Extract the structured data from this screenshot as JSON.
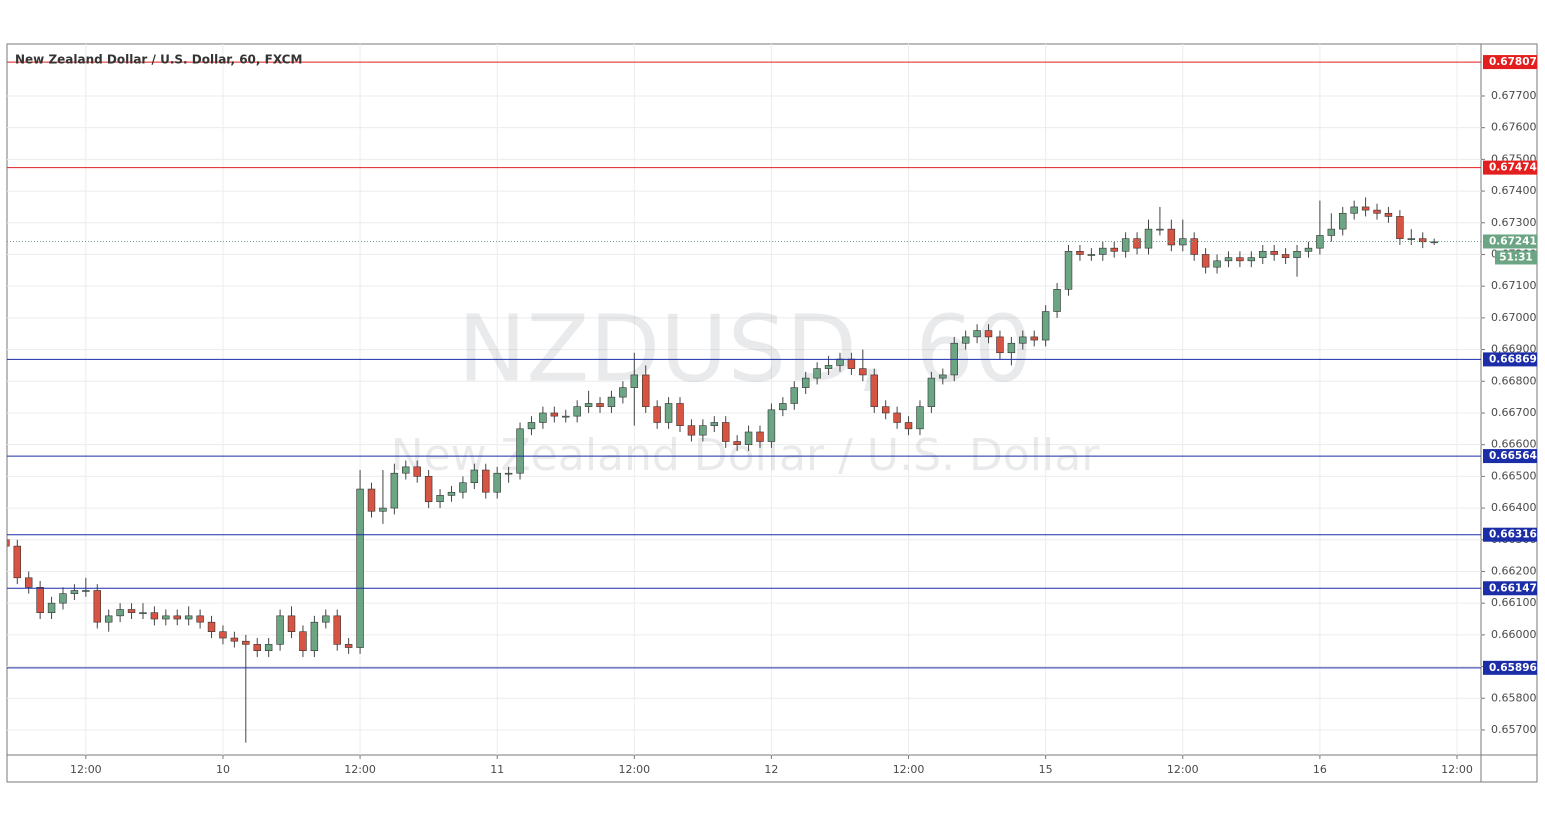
{
  "chart_data": {
    "type": "candlestick",
    "title": "New Zealand Dollar / U.S. Dollar, 60, FXCM",
    "watermark": "NZDUSD, 60",
    "watermark_subtitle": "New Zealand Dollar / U.S. Dollar",
    "up_color": "#6ba583",
    "down_color": "#d75442",
    "grid": true,
    "open": [
      0.663,
      0.6628,
      0.6618,
      0.6615,
      0.6607,
      0.661,
      0.6613,
      0.6614,
      0.6614,
      0.6604,
      0.6606,
      0.6608,
      0.6607,
      0.6607,
      0.6605,
      0.6606,
      0.6605,
      0.6606,
      0.6604,
      0.6601,
      0.6599,
      0.6598,
      0.6597,
      0.6595,
      0.6597,
      0.6606,
      0.6601,
      0.6595,
      0.6604,
      0.6606,
      0.6597,
      0.6596,
      0.6646,
      0.6639,
      0.664,
      0.6651,
      0.6653,
      0.665,
      0.6642,
      0.6644,
      0.6645,
      0.6648,
      0.6652,
      0.6645,
      0.6651,
      0.6651,
      0.6665,
      0.6667,
      0.667,
      0.6669,
      0.6669,
      0.6672,
      0.6673,
      0.6672,
      0.6675,
      0.6678,
      0.6682,
      0.6672,
      0.6667,
      0.6673,
      0.6666,
      0.6663,
      0.6666,
      0.6667,
      0.6661,
      0.666,
      0.6664,
      0.6661,
      0.6671,
      0.6673,
      0.6678,
      0.6681,
      0.6684,
      0.6685,
      0.6687,
      0.6684,
      0.6682,
      0.6672,
      0.667,
      0.6667,
      0.6665,
      0.6672,
      0.6681,
      0.6682,
      0.6692,
      0.6694,
      0.6696,
      0.6694,
      0.6689,
      0.6692,
      0.6694,
      0.6693,
      0.6702,
      0.6709,
      0.6721,
      0.672,
      0.672,
      0.6722,
      0.6721,
      0.6725,
      0.6722,
      0.6728,
      0.6728,
      0.6723,
      0.6725,
      0.672,
      0.6716,
      0.6718,
      0.6719,
      0.6718,
      0.6719,
      0.6721,
      0.672,
      0.6719,
      0.6721,
      0.6722,
      0.6726,
      0.6728,
      0.6733,
      0.6735,
      0.6734,
      0.6733,
      0.6732,
      0.6725,
      0.6725,
      0.6724
    ],
    "high": [
      0.6632,
      0.663,
      0.662,
      0.6617,
      0.6612,
      0.6615,
      0.6616,
      0.6618,
      0.6616,
      0.6608,
      0.661,
      0.661,
      0.661,
      0.6609,
      0.6608,
      0.6608,
      0.6609,
      0.6608,
      0.6606,
      0.6603,
      0.6601,
      0.66,
      0.6599,
      0.6599,
      0.6608,
      0.6609,
      0.6603,
      0.6606,
      0.6608,
      0.6608,
      0.6599,
      0.6652,
      0.6648,
      0.6652,
      0.6654,
      0.6655,
      0.6655,
      0.6652,
      0.6646,
      0.6647,
      0.665,
      0.6654,
      0.6654,
      0.6653,
      0.6653,
      0.6667,
      0.6669,
      0.6672,
      0.6672,
      0.6671,
      0.6674,
      0.6677,
      0.6675,
      0.6677,
      0.668,
      0.6689,
      0.6685,
      0.6674,
      0.6675,
      0.6675,
      0.6668,
      0.6668,
      0.6669,
      0.6669,
      0.6663,
      0.6666,
      0.6666,
      0.6673,
      0.6675,
      0.668,
      0.6683,
      0.6686,
      0.6688,
      0.6689,
      0.6689,
      0.669,
      0.6684,
      0.6674,
      0.6672,
      0.6669,
      0.6674,
      0.6683,
      0.6684,
      0.6694,
      0.6696,
      0.6698,
      0.6698,
      0.6696,
      0.6694,
      0.6696,
      0.6696,
      0.6704,
      0.6711,
      0.6723,
      0.6723,
      0.6722,
      0.6724,
      0.6724,
      0.6727,
      0.6727,
      0.6731,
      0.6735,
      0.6731,
      0.6731,
      0.6727,
      0.6722,
      0.672,
      0.6721,
      0.6721,
      0.6721,
      0.6723,
      0.6723,
      0.6722,
      0.6723,
      0.6724,
      0.6737,
      0.6733,
      0.6735,
      0.6737,
      0.6738,
      0.6736,
      0.6735,
      0.6734,
      0.6728,
      0.6727,
      0.6725
    ],
    "low": [
      0.6626,
      0.6616,
      0.6613,
      0.6605,
      0.6605,
      0.6608,
      0.6611,
      0.6612,
      0.6602,
      0.6601,
      0.6604,
      0.6605,
      0.6605,
      0.6603,
      0.6603,
      0.6603,
      0.6603,
      0.6602,
      0.6599,
      0.6597,
      0.6596,
      0.6566,
      0.6593,
      0.6593,
      0.6595,
      0.6599,
      0.6593,
      0.6593,
      0.6602,
      0.6595,
      0.6594,
      0.6594,
      0.6637,
      0.6635,
      0.6638,
      0.6649,
      0.6648,
      0.664,
      0.664,
      0.6642,
      0.6643,
      0.6646,
      0.6643,
      0.6643,
      0.6648,
      0.6649,
      0.6663,
      0.6665,
      0.6667,
      0.6667,
      0.6667,
      0.667,
      0.667,
      0.667,
      0.6673,
      0.6666,
      0.667,
      0.6665,
      0.6665,
      0.6664,
      0.6661,
      0.6661,
      0.6664,
      0.6659,
      0.6658,
      0.6658,
      0.6659,
      0.6659,
      0.6669,
      0.6671,
      0.6676,
      0.6679,
      0.6682,
      0.6683,
      0.6682,
      0.668,
      0.667,
      0.6668,
      0.6665,
      0.6663,
      0.6663,
      0.667,
      0.6679,
      0.668,
      0.669,
      0.6692,
      0.6692,
      0.6687,
      0.6685,
      0.669,
      0.6691,
      0.6691,
      0.67,
      0.6707,
      0.6718,
      0.6718,
      0.6718,
      0.6719,
      0.6719,
      0.672,
      0.672,
      0.6726,
      0.6721,
      0.6721,
      0.6718,
      0.6714,
      0.6714,
      0.6716,
      0.6716,
      0.6716,
      0.6717,
      0.6718,
      0.6717,
      0.6713,
      0.6719,
      0.672,
      0.6724,
      0.6726,
      0.6731,
      0.6732,
      0.6731,
      0.673,
      0.6723,
      0.6723,
      0.6722,
      0.6723
    ],
    "close": [
      0.6628,
      0.6618,
      0.6615,
      0.6607,
      0.661,
      0.6613,
      0.6614,
      0.6614,
      0.6604,
      0.6606,
      0.6608,
      0.6607,
      0.6607,
      0.6605,
      0.6606,
      0.6605,
      0.6606,
      0.6604,
      0.6601,
      0.6599,
      0.6598,
      0.6597,
      0.6595,
      0.6597,
      0.6606,
      0.6601,
      0.6595,
      0.6604,
      0.6606,
      0.6597,
      0.6596,
      0.6646,
      0.6639,
      0.664,
      0.6651,
      0.6653,
      0.665,
      0.6642,
      0.6644,
      0.6645,
      0.6648,
      0.6652,
      0.6645,
      0.6651,
      0.6651,
      0.6665,
      0.6667,
      0.667,
      0.6669,
      0.6669,
      0.6672,
      0.6673,
      0.6672,
      0.6675,
      0.6678,
      0.6682,
      0.6672,
      0.6667,
      0.6673,
      0.6666,
      0.6663,
      0.6666,
      0.6667,
      0.6661,
      0.666,
      0.6664,
      0.6661,
      0.6671,
      0.6673,
      0.6678,
      0.6681,
      0.6684,
      0.6685,
      0.6687,
      0.6684,
      0.6682,
      0.6672,
      0.667,
      0.6667,
      0.6665,
      0.6672,
      0.6681,
      0.6682,
      0.6692,
      0.6694,
      0.6696,
      0.6694,
      0.6689,
      0.6692,
      0.6694,
      0.6693,
      0.6702,
      0.6709,
      0.6721,
      0.672,
      0.672,
      0.6722,
      0.6721,
      0.6725,
      0.6722,
      0.6728,
      0.6728,
      0.6723,
      0.6725,
      0.672,
      0.6716,
      0.6718,
      0.6719,
      0.6718,
      0.6719,
      0.6721,
      0.672,
      0.6719,
      0.6721,
      0.6722,
      0.6726,
      0.6728,
      0.6733,
      0.6735,
      0.6734,
      0.6733,
      0.6732,
      0.6725,
      0.6725,
      0.6724,
      0.6724
    ],
    "ylim": [
      0.65621,
      0.67864
    ],
    "yticks": [
      {
        "value": 0.657,
        "label": "0.65700"
      },
      {
        "value": 0.658,
        "label": "0.65800"
      },
      {
        "value": 0.659,
        "label": "0.65900"
      },
      {
        "value": 0.66,
        "label": "0.66000"
      },
      {
        "value": 0.661,
        "label": "0.66100"
      },
      {
        "value": 0.662,
        "label": "0.66200"
      },
      {
        "value": 0.663,
        "label": "0.66300"
      },
      {
        "value": 0.664,
        "label": "0.66400"
      },
      {
        "value": 0.665,
        "label": "0.66500"
      },
      {
        "value": 0.666,
        "label": "0.66600"
      },
      {
        "value": 0.667,
        "label": "0.66700"
      },
      {
        "value": 0.668,
        "label": "0.66800"
      },
      {
        "value": 0.669,
        "label": "0.66900"
      },
      {
        "value": 0.67,
        "label": "0.67000"
      },
      {
        "value": 0.671,
        "label": "0.67100"
      },
      {
        "value": 0.672,
        "label": "0.67200"
      },
      {
        "value": 0.673,
        "label": "0.67300"
      },
      {
        "value": 0.674,
        "label": "0.67400"
      },
      {
        "value": 0.675,
        "label": "0.67500"
      },
      {
        "value": 0.676,
        "label": "0.67600"
      },
      {
        "value": 0.677,
        "label": "0.67700"
      }
    ],
    "xlim": [
      0.1,
      129.1
    ],
    "xticks": [
      {
        "value": 7,
        "label": "12:00"
      },
      {
        "value": 19,
        "label": "10"
      },
      {
        "value": 31,
        "label": "12:00"
      },
      {
        "value": 43,
        "label": "11"
      },
      {
        "value": 55,
        "label": "12:00"
      },
      {
        "value": 67,
        "label": "12"
      },
      {
        "value": 79,
        "label": "12:00"
      },
      {
        "value": 91,
        "label": "15"
      },
      {
        "value": 103,
        "label": "12:00"
      },
      {
        "value": 115,
        "label": "16"
      },
      {
        "value": 127,
        "label": "12:00"
      }
    ],
    "levels": [
      {
        "value": 0.67807,
        "color": "#e31e1e"
      },
      {
        "value": 0.67474,
        "color": "#e31e1e"
      },
      {
        "value": 0.66869,
        "color": "#1c2da8"
      },
      {
        "value": 0.66564,
        "color": "#1c2da8"
      },
      {
        "value": 0.66316,
        "color": "#1c2da8"
      },
      {
        "value": 0.66147,
        "color": "#1c2da8"
      },
      {
        "value": 0.65896,
        "color": "#1c2da8"
      }
    ],
    "last_price": {
      "value": 0.67241,
      "timer": "51:31",
      "color": "#6ba583"
    }
  }
}
